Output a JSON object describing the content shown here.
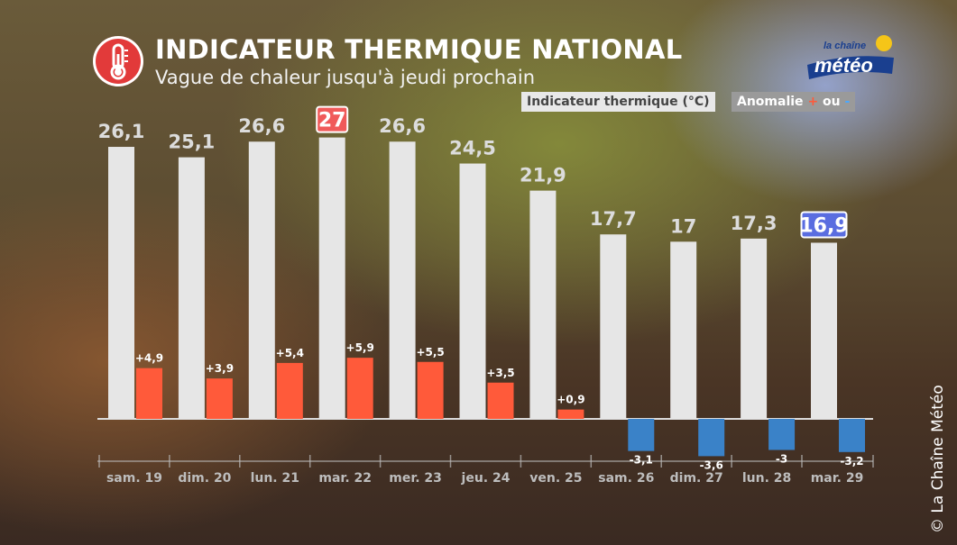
{
  "header": {
    "title": "INDICATEUR THERMIQUE NATIONAL",
    "subtitle": "Vague de chaleur jusqu'à jeudi prochain",
    "icon": "thermometer-icon",
    "accent_color": "#e23a3a"
  },
  "logo": {
    "line1": "la chaîne",
    "line2": "météo"
  },
  "legend": {
    "thermal_label": "Indicateur thermique (°C)",
    "anomaly_label": "Anomalie",
    "plus": "+",
    "or": "ou",
    "minus": "-"
  },
  "copyright": "© La Chaîne Météo",
  "chart_data": {
    "type": "bar",
    "categories": [
      "sam. 19",
      "dim. 20",
      "lun. 21",
      "mar. 22",
      "mer. 23",
      "jeu. 24",
      "ven. 25",
      "sam. 26",
      "dim. 27",
      "lun. 28",
      "mar. 29"
    ],
    "series": [
      {
        "name": "Indicateur thermique (°C)",
        "values": [
          26.1,
          25.1,
          26.6,
          27,
          26.6,
          24.5,
          21.9,
          17.7,
          17,
          17.3,
          16.9
        ],
        "labels": [
          "26,1",
          "25,1",
          "26,6",
          "27",
          "26,6",
          "24,5",
          "21,9",
          "17,7",
          "17",
          "17,3",
          "16,9"
        ],
        "color": "#e6e6e6"
      },
      {
        "name": "Anomalie",
        "values": [
          4.9,
          3.9,
          5.4,
          5.9,
          5.5,
          3.5,
          0.9,
          -3.1,
          -3.6,
          -3,
          -3.2
        ],
        "labels": [
          "+4,9",
          "+3,9",
          "+5,4",
          "+5,9",
          "+5,5",
          "+3,5",
          "+0,9",
          "-3,1",
          "-3,6",
          "-3",
          "-3,2"
        ],
        "positive_color": "#ff5a3a",
        "negative_color": "#3a82c8"
      }
    ],
    "max_highlight_index": 3,
    "max_highlight_color": "#f05a5a",
    "min_highlight_index": 10,
    "min_highlight_color": "#5a6de0"
  }
}
